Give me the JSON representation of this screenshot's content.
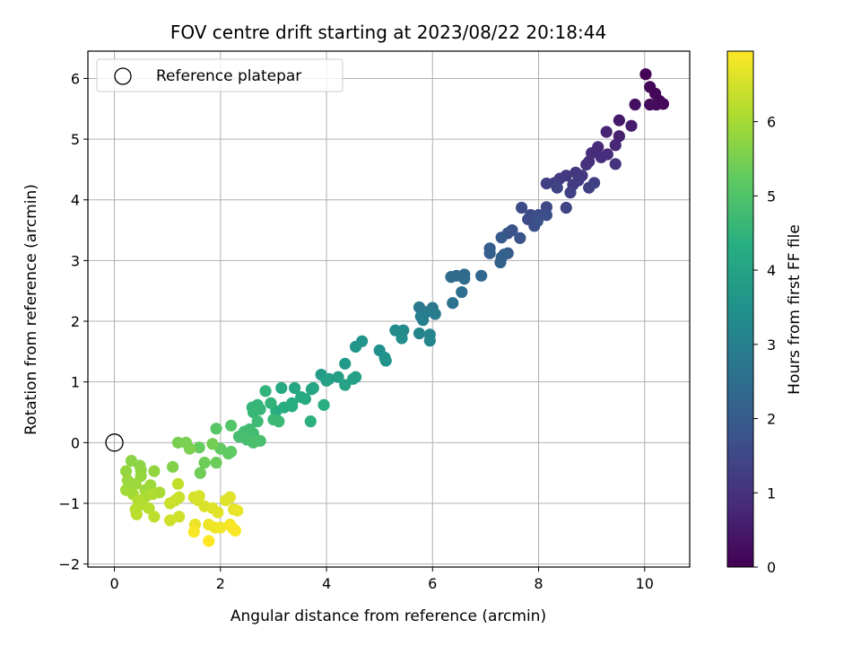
{
  "chart_data": {
    "type": "scatter",
    "title": "FOV centre drift starting at 2023/08/22 20:18:44",
    "xlabel": "Angular distance from reference (arcmin)",
    "ylabel": "Rotation from reference (arcmin)",
    "xlim": [
      -0.5,
      10.85
    ],
    "ylim": [
      -2.05,
      6.45
    ],
    "xticks": [
      0,
      2,
      4,
      6,
      8,
      10
    ],
    "yticks": [
      -2,
      -1,
      0,
      1,
      2,
      3,
      4,
      5,
      6
    ],
    "grid": true,
    "legend": {
      "location": "top-left",
      "entries": [
        "Reference platepar"
      ]
    },
    "colormap": "viridis",
    "colorbar": {
      "label": "Hours from first FF file",
      "range": [
        0,
        6.95
      ],
      "ticks": [
        0,
        1,
        2,
        3,
        4,
        5,
        6
      ]
    },
    "reference_point": {
      "x": 0,
      "y": 0,
      "label": "Reference platepar"
    },
    "points": [
      {
        "x": 10.02,
        "y": 6.07,
        "h": 0.05
      },
      {
        "x": 10.1,
        "y": 5.86,
        "h": 0.1
      },
      {
        "x": 10.2,
        "y": 5.75,
        "h": 0.12
      },
      {
        "x": 10.28,
        "y": 5.63,
        "h": 0.15
      },
      {
        "x": 10.35,
        "y": 5.58,
        "h": 0.18
      },
      {
        "x": 10.1,
        "y": 5.57,
        "h": 0.2
      },
      {
        "x": 10.22,
        "y": 5.57,
        "h": 0.22
      },
      {
        "x": 9.82,
        "y": 5.57,
        "h": 0.3
      },
      {
        "x": 9.52,
        "y": 5.31,
        "h": 0.5
      },
      {
        "x": 9.75,
        "y": 5.22,
        "h": 0.55
      },
      {
        "x": 9.52,
        "y": 5.05,
        "h": 0.65
      },
      {
        "x": 9.28,
        "y": 5.12,
        "h": 0.7
      },
      {
        "x": 9.45,
        "y": 4.9,
        "h": 0.75
      },
      {
        "x": 9.12,
        "y": 4.87,
        "h": 0.8
      },
      {
        "x": 9.0,
        "y": 4.77,
        "h": 0.85
      },
      {
        "x": 9.3,
        "y": 4.75,
        "h": 0.88
      },
      {
        "x": 9.18,
        "y": 4.7,
        "h": 0.9
      },
      {
        "x": 8.95,
        "y": 4.63,
        "h": 0.95
      },
      {
        "x": 8.9,
        "y": 4.58,
        "h": 0.98
      },
      {
        "x": 9.45,
        "y": 4.59,
        "h": 1.0
      },
      {
        "x": 8.7,
        "y": 4.45,
        "h": 1.1
      },
      {
        "x": 8.82,
        "y": 4.4,
        "h": 1.12
      },
      {
        "x": 8.52,
        "y": 4.4,
        "h": 1.15
      },
      {
        "x": 8.4,
        "y": 4.35,
        "h": 1.18
      },
      {
        "x": 8.75,
        "y": 4.32,
        "h": 1.2
      },
      {
        "x": 8.3,
        "y": 4.28,
        "h": 1.22
      },
      {
        "x": 8.65,
        "y": 4.25,
        "h": 1.25
      },
      {
        "x": 8.15,
        "y": 4.27,
        "h": 1.28
      },
      {
        "x": 9.05,
        "y": 4.28,
        "h": 1.3
      },
      {
        "x": 8.95,
        "y": 4.2,
        "h": 1.32
      },
      {
        "x": 8.6,
        "y": 4.12,
        "h": 1.35
      },
      {
        "x": 8.35,
        "y": 4.2,
        "h": 1.38
      },
      {
        "x": 8.52,
        "y": 3.87,
        "h": 1.4
      },
      {
        "x": 8.15,
        "y": 3.88,
        "h": 1.5
      },
      {
        "x": 7.85,
        "y": 3.75,
        "h": 1.55
      },
      {
        "x": 7.68,
        "y": 3.87,
        "h": 1.58
      },
      {
        "x": 7.8,
        "y": 3.68,
        "h": 1.6
      },
      {
        "x": 8.0,
        "y": 3.75,
        "h": 1.62
      },
      {
        "x": 8.15,
        "y": 3.75,
        "h": 1.65
      },
      {
        "x": 7.98,
        "y": 3.65,
        "h": 1.68
      },
      {
        "x": 7.92,
        "y": 3.57,
        "h": 1.7
      },
      {
        "x": 7.5,
        "y": 3.5,
        "h": 1.75
      },
      {
        "x": 7.42,
        "y": 3.45,
        "h": 1.78
      },
      {
        "x": 7.65,
        "y": 3.37,
        "h": 1.82
      },
      {
        "x": 7.3,
        "y": 3.38,
        "h": 1.95
      },
      {
        "x": 7.42,
        "y": 3.12,
        "h": 2.0
      },
      {
        "x": 7.08,
        "y": 3.2,
        "h": 2.05
      },
      {
        "x": 7.08,
        "y": 3.12,
        "h": 2.08
      },
      {
        "x": 7.3,
        "y": 3.05,
        "h": 2.1
      },
      {
        "x": 7.35,
        "y": 3.1,
        "h": 2.12
      },
      {
        "x": 7.28,
        "y": 2.97,
        "h": 2.15
      },
      {
        "x": 6.92,
        "y": 2.75,
        "h": 2.3
      },
      {
        "x": 6.6,
        "y": 2.77,
        "h": 2.35
      },
      {
        "x": 6.45,
        "y": 2.75,
        "h": 2.38
      },
      {
        "x": 6.35,
        "y": 2.73,
        "h": 2.4
      },
      {
        "x": 6.6,
        "y": 2.7,
        "h": 2.45
      },
      {
        "x": 6.55,
        "y": 2.48,
        "h": 2.5
      },
      {
        "x": 6.38,
        "y": 2.3,
        "h": 2.6
      },
      {
        "x": 6.0,
        "y": 2.22,
        "h": 2.75
      },
      {
        "x": 5.75,
        "y": 2.23,
        "h": 2.8
      },
      {
        "x": 5.88,
        "y": 2.15,
        "h": 2.85
      },
      {
        "x": 6.05,
        "y": 2.12,
        "h": 2.9
      },
      {
        "x": 5.78,
        "y": 2.08,
        "h": 2.95
      },
      {
        "x": 5.82,
        "y": 2.02,
        "h": 2.98
      },
      {
        "x": 5.75,
        "y": 1.8,
        "h": 3.1
      },
      {
        "x": 5.95,
        "y": 1.78,
        "h": 3.12
      },
      {
        "x": 5.95,
        "y": 1.68,
        "h": 3.15
      },
      {
        "x": 5.45,
        "y": 1.85,
        "h": 3.3
      },
      {
        "x": 5.3,
        "y": 1.85,
        "h": 3.32
      },
      {
        "x": 5.42,
        "y": 1.72,
        "h": 3.35
      },
      {
        "x": 5.0,
        "y": 1.52,
        "h": 3.45
      },
      {
        "x": 5.1,
        "y": 1.4,
        "h": 3.5
      },
      {
        "x": 5.12,
        "y": 1.35,
        "h": 3.52
      },
      {
        "x": 4.67,
        "y": 1.67,
        "h": 3.55
      },
      {
        "x": 4.55,
        "y": 1.58,
        "h": 3.58
      },
      {
        "x": 4.35,
        "y": 1.3,
        "h": 3.7
      },
      {
        "x": 3.9,
        "y": 1.12,
        "h": 3.8
      },
      {
        "x": 4.05,
        "y": 1.05,
        "h": 3.85
      },
      {
        "x": 4.22,
        "y": 1.08,
        "h": 3.88
      },
      {
        "x": 4.55,
        "y": 1.08,
        "h": 3.9
      },
      {
        "x": 4.5,
        "y": 1.05,
        "h": 3.92
      },
      {
        "x": 4.35,
        "y": 0.95,
        "h": 3.95
      },
      {
        "x": 4.0,
        "y": 1.02,
        "h": 3.98
      },
      {
        "x": 3.75,
        "y": 0.9,
        "h": 4.05
      },
      {
        "x": 3.72,
        "y": 0.88,
        "h": 4.08
      },
      {
        "x": 3.4,
        "y": 0.9,
        "h": 4.1
      },
      {
        "x": 3.15,
        "y": 0.9,
        "h": 4.15
      },
      {
        "x": 3.52,
        "y": 0.75,
        "h": 4.2
      },
      {
        "x": 3.6,
        "y": 0.72,
        "h": 4.22
      },
      {
        "x": 3.35,
        "y": 0.65,
        "h": 4.25
      },
      {
        "x": 3.2,
        "y": 0.58,
        "h": 4.28
      },
      {
        "x": 3.35,
        "y": 0.6,
        "h": 4.3
      },
      {
        "x": 3.05,
        "y": 0.52,
        "h": 4.32
      },
      {
        "x": 3.95,
        "y": 0.62,
        "h": 4.35
      },
      {
        "x": 3.7,
        "y": 0.35,
        "h": 4.4
      },
      {
        "x": 2.85,
        "y": 0.85,
        "h": 4.5
      },
      {
        "x": 2.95,
        "y": 0.65,
        "h": 4.52
      },
      {
        "x": 2.7,
        "y": 0.62,
        "h": 4.55
      },
      {
        "x": 2.6,
        "y": 0.58,
        "h": 4.58
      },
      {
        "x": 2.75,
        "y": 0.55,
        "h": 4.6
      },
      {
        "x": 2.62,
        "y": 0.5,
        "h": 4.62
      },
      {
        "x": 3.0,
        "y": 0.38,
        "h": 4.65
      },
      {
        "x": 3.1,
        "y": 0.35,
        "h": 4.68
      },
      {
        "x": 2.7,
        "y": 0.35,
        "h": 4.7
      },
      {
        "x": 2.55,
        "y": 0.22,
        "h": 4.75
      },
      {
        "x": 2.45,
        "y": 0.18,
        "h": 4.78
      },
      {
        "x": 2.62,
        "y": 0.15,
        "h": 4.8
      },
      {
        "x": 2.35,
        "y": 0.1,
        "h": 4.82
      },
      {
        "x": 2.5,
        "y": 0.05,
        "h": 4.85
      },
      {
        "x": 2.75,
        "y": 0.03,
        "h": 4.88
      },
      {
        "x": 2.62,
        "y": 0.0,
        "h": 4.9
      },
      {
        "x": 2.2,
        "y": 0.28,
        "h": 5.05
      },
      {
        "x": 1.92,
        "y": 0.23,
        "h": 5.1
      },
      {
        "x": 2.2,
        "y": -0.15,
        "h": 5.2
      },
      {
        "x": 2.15,
        "y": -0.18,
        "h": 5.22
      },
      {
        "x": 2.0,
        "y": -0.1,
        "h": 5.25
      },
      {
        "x": 1.6,
        "y": -0.08,
        "h": 5.3
      },
      {
        "x": 1.92,
        "y": -0.33,
        "h": 5.35
      },
      {
        "x": 1.7,
        "y": -0.33,
        "h": 5.38
      },
      {
        "x": 1.62,
        "y": -0.5,
        "h": 5.4
      },
      {
        "x": 1.85,
        "y": -0.02,
        "h": 5.45
      },
      {
        "x": 1.2,
        "y": 0.0,
        "h": 5.5
      },
      {
        "x": 1.35,
        "y": 0.0,
        "h": 5.52
      },
      {
        "x": 1.42,
        "y": -0.1,
        "h": 5.55
      },
      {
        "x": 1.1,
        "y": -0.4,
        "h": 5.6
      },
      {
        "x": 0.32,
        "y": -0.3,
        "h": 5.7
      },
      {
        "x": 0.48,
        "y": -0.38,
        "h": 5.72
      },
      {
        "x": 0.5,
        "y": -0.45,
        "h": 5.75
      },
      {
        "x": 0.22,
        "y": -0.47,
        "h": 5.78
      },
      {
        "x": 0.75,
        "y": -0.47,
        "h": 5.8
      },
      {
        "x": 0.5,
        "y": -0.55,
        "h": 5.82
      },
      {
        "x": 0.25,
        "y": -0.62,
        "h": 5.85
      },
      {
        "x": 0.4,
        "y": -0.68,
        "h": 5.88
      },
      {
        "x": 0.68,
        "y": -0.7,
        "h": 5.9
      },
      {
        "x": 0.58,
        "y": -0.78,
        "h": 5.92
      },
      {
        "x": 0.22,
        "y": -0.78,
        "h": 5.95
      },
      {
        "x": 0.35,
        "y": -0.85,
        "h": 5.98
      },
      {
        "x": 0.6,
        "y": -0.88,
        "h": 6.0
      },
      {
        "x": 0.85,
        "y": -0.82,
        "h": 6.02
      },
      {
        "x": 0.72,
        "y": -0.85,
        "h": 6.1
      },
      {
        "x": 0.45,
        "y": -0.95,
        "h": 6.12
      },
      {
        "x": 0.52,
        "y": -1.02,
        "h": 6.15
      },
      {
        "x": 0.65,
        "y": -1.08,
        "h": 6.18
      },
      {
        "x": 0.4,
        "y": -1.1,
        "h": 6.2
      },
      {
        "x": 0.42,
        "y": -1.18,
        "h": 6.22
      },
      {
        "x": 0.75,
        "y": -1.22,
        "h": 6.25
      },
      {
        "x": 1.2,
        "y": -0.68,
        "h": 6.3
      },
      {
        "x": 1.15,
        "y": -0.95,
        "h": 6.35
      },
      {
        "x": 1.22,
        "y": -0.9,
        "h": 6.38
      },
      {
        "x": 1.05,
        "y": -1.0,
        "h": 6.4
      },
      {
        "x": 1.22,
        "y": -1.22,
        "h": 6.42
      },
      {
        "x": 1.05,
        "y": -1.28,
        "h": 6.45
      },
      {
        "x": 1.5,
        "y": -0.9,
        "h": 6.5
      },
      {
        "x": 1.6,
        "y": -0.88,
        "h": 6.52
      },
      {
        "x": 1.58,
        "y": -0.95,
        "h": 6.55
      },
      {
        "x": 1.7,
        "y": -1.05,
        "h": 6.58
      },
      {
        "x": 1.85,
        "y": -1.08,
        "h": 6.6
      },
      {
        "x": 2.1,
        "y": -0.95,
        "h": 6.62
      },
      {
        "x": 2.18,
        "y": -0.9,
        "h": 6.64
      },
      {
        "x": 1.95,
        "y": -1.15,
        "h": 6.66
      },
      {
        "x": 2.25,
        "y": -1.1,
        "h": 6.7
      },
      {
        "x": 2.32,
        "y": -1.12,
        "h": 6.72
      },
      {
        "x": 1.52,
        "y": -1.35,
        "h": 6.75
      },
      {
        "x": 1.78,
        "y": -1.35,
        "h": 6.78
      },
      {
        "x": 1.9,
        "y": -1.4,
        "h": 6.8
      },
      {
        "x": 2.0,
        "y": -1.4,
        "h": 6.82
      },
      {
        "x": 2.18,
        "y": -1.35,
        "h": 6.85
      },
      {
        "x": 2.22,
        "y": -1.4,
        "h": 6.87
      },
      {
        "x": 2.28,
        "y": -1.45,
        "h": 6.9
      },
      {
        "x": 1.5,
        "y": -1.47,
        "h": 6.92
      },
      {
        "x": 1.78,
        "y": -1.62,
        "h": 6.95
      }
    ]
  }
}
